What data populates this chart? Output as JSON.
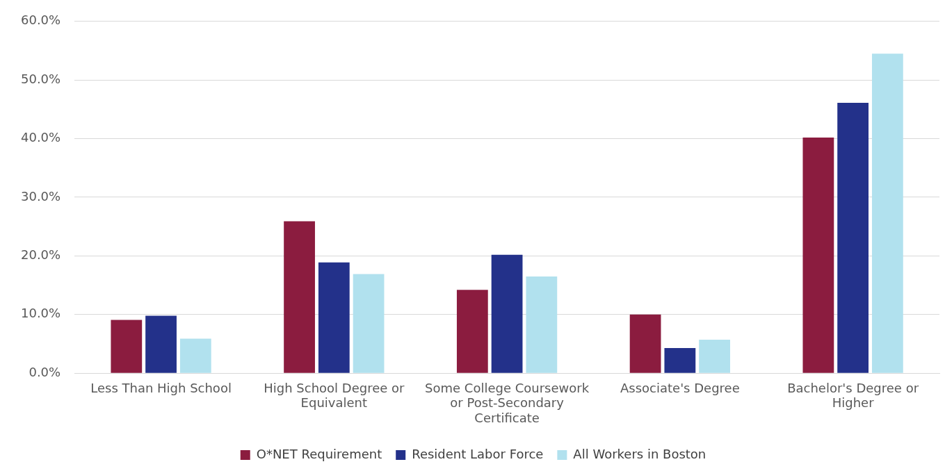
{
  "chart_data": {
    "type": "bar",
    "categories": [
      "Less Than High School",
      "High School Degree or Equivalent",
      "Some College Coursework or Post-Secondary Certificate",
      "Associate's Degree",
      "Bachelor's Degree or Higher"
    ],
    "series": [
      {
        "name": "O*NET Requirement",
        "color": "#8b1c3f",
        "values": [
          9.1,
          25.9,
          14.2,
          10.0,
          40.2
        ]
      },
      {
        "name": "Resident Labor Force",
        "color": "#23318a",
        "values": [
          9.8,
          18.9,
          20.2,
          4.3,
          46.1
        ]
      },
      {
        "name": "All Workers in Boston",
        "color": "#b1e1ee",
        "values": [
          5.9,
          16.9,
          16.5,
          5.7,
          54.5
        ]
      }
    ],
    "ylim": [
      0,
      60
    ],
    "yticks": [
      {
        "value": 0,
        "label": "0.0%"
      },
      {
        "value": 10,
        "label": "10.0%"
      },
      {
        "value": 20,
        "label": "20.0%"
      },
      {
        "value": 30,
        "label": "30.0%"
      },
      {
        "value": 40,
        "label": "40.0%"
      },
      {
        "value": 50,
        "label": "50.0%"
      },
      {
        "value": 60,
        "label": "60.0%"
      }
    ],
    "grid": "y",
    "legend": "bottom"
  }
}
